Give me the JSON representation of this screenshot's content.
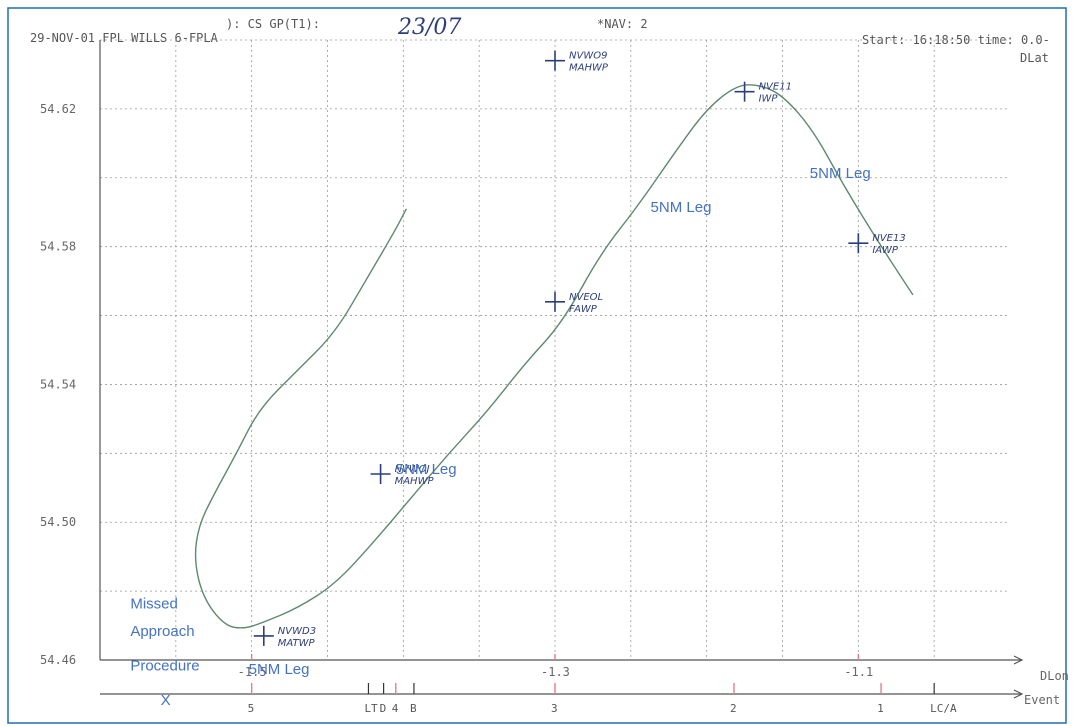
{
  "header": {
    "left": "29-NOV-01 FPL WILLS 6-FPLA",
    "mid": "): CS GP(T1):",
    "handwritten_date": "23/07",
    "nav": "*NAV: 2",
    "start": "Start:  16:18:50  time:  0.0-",
    "dlat": "DLat"
  },
  "chart_data": {
    "type": "line",
    "xlabel": "DLon",
    "ylabel": "DLat",
    "xlim": [
      -1.6,
      -1.0
    ],
    "ylim": [
      54.46,
      54.64
    ],
    "x_ticks": [
      {
        "value": -1.5,
        "label": "-1.5"
      },
      {
        "value": -1.3,
        "label": "-1.3"
      },
      {
        "value": -1.1,
        "label": "-1.1"
      }
    ],
    "y_ticks": [
      {
        "value": 54.62,
        "label": "54.62"
      },
      {
        "value": 54.58,
        "label": "54.58"
      },
      {
        "value": 54.54,
        "label": "54.54"
      },
      {
        "value": 54.5,
        "label": "54.50"
      },
      {
        "value": 54.46,
        "label": "54.46"
      }
    ],
    "series": [
      {
        "points": [
          [
            -1.064,
            54.566
          ],
          [
            -1.085,
            54.58
          ],
          [
            -1.11,
            54.598
          ],
          [
            -1.13,
            54.614
          ],
          [
            -1.15,
            54.624
          ],
          [
            -1.165,
            54.627
          ],
          [
            -1.18,
            54.627
          ],
          [
            -1.2,
            54.62
          ],
          [
            -1.22,
            54.608
          ],
          [
            -1.245,
            54.592
          ],
          [
            -1.27,
            54.578
          ],
          [
            -1.295,
            54.558
          ],
          [
            -1.32,
            54.546
          ],
          [
            -1.345,
            54.532
          ],
          [
            -1.37,
            54.52
          ],
          [
            -1.395,
            54.507
          ],
          [
            -1.42,
            54.494
          ],
          [
            -1.445,
            54.482
          ],
          [
            -1.47,
            54.475
          ],
          [
            -1.492,
            54.471
          ],
          [
            -1.505,
            54.469
          ],
          [
            -1.518,
            54.47
          ],
          [
            -1.532,
            54.478
          ],
          [
            -1.538,
            54.489
          ],
          [
            -1.535,
            54.499
          ],
          [
            -1.525,
            54.508
          ],
          [
            -1.51,
            54.52
          ],
          [
            -1.495,
            54.533
          ],
          [
            -1.47,
            54.544
          ],
          [
            -1.445,
            54.555
          ],
          [
            -1.425,
            54.57
          ],
          [
            -1.405,
            54.585
          ],
          [
            -1.398,
            54.591
          ]
        ]
      }
    ],
    "waypoints": [
      {
        "name": "NVWD3",
        "type": "MATWP",
        "x": -1.492,
        "y": 54.467
      },
      {
        "name": "NVWOJ",
        "type": "MAHWP",
        "x": -1.415,
        "y": 54.514
      },
      {
        "name": "NVEOL",
        "type": "FAWP",
        "x": -1.3,
        "y": 54.564
      },
      {
        "name": "NVWO9",
        "type": "MAHWP",
        "x": -1.3,
        "y": 54.634
      },
      {
        "name": "NVE11",
        "type": "IWP",
        "x": -1.175,
        "y": 54.625
      },
      {
        "name": "NVE13",
        "type": "IAWP",
        "x": -1.1,
        "y": 54.581
      }
    ],
    "annotations": [
      {
        "text": "5NM Leg",
        "x": -1.132,
        "y": 54.6
      },
      {
        "text": "5NM Leg",
        "x": -1.237,
        "y": 54.59
      },
      {
        "text": "5NM Leg",
        "x": -1.405,
        "y": 54.514
      },
      {
        "text": "5NM Leg",
        "x": -1.502,
        "y": 54.456
      },
      {
        "text": "Missed",
        "x": -1.58,
        "y": 54.475
      },
      {
        "text": "Approach",
        "x": -1.58,
        "y": 54.467
      },
      {
        "text": "Procedure",
        "x": -1.58,
        "y": 54.457
      },
      {
        "text": "X",
        "x": -1.56,
        "y": 54.447
      }
    ],
    "event_axis": {
      "label": "Event",
      "ticks": [
        {
          "label": "5",
          "x": -1.5,
          "color": "red"
        },
        {
          "label": "LT",
          "x": -1.423,
          "color": "black"
        },
        {
          "label": "D",
          "x": -1.413,
          "color": "black"
        },
        {
          "label": "4",
          "x": -1.405,
          "color": "red"
        },
        {
          "label": "B",
          "x": -1.393,
          "color": "black"
        },
        {
          "label": "3",
          "x": -1.3,
          "color": "red"
        },
        {
          "label": "2",
          "x": -1.182,
          "color": "red"
        },
        {
          "label": "1",
          "x": -1.085,
          "color": "red"
        },
        {
          "label": "LC/A",
          "x": -1.05,
          "color": "black"
        }
      ]
    }
  }
}
